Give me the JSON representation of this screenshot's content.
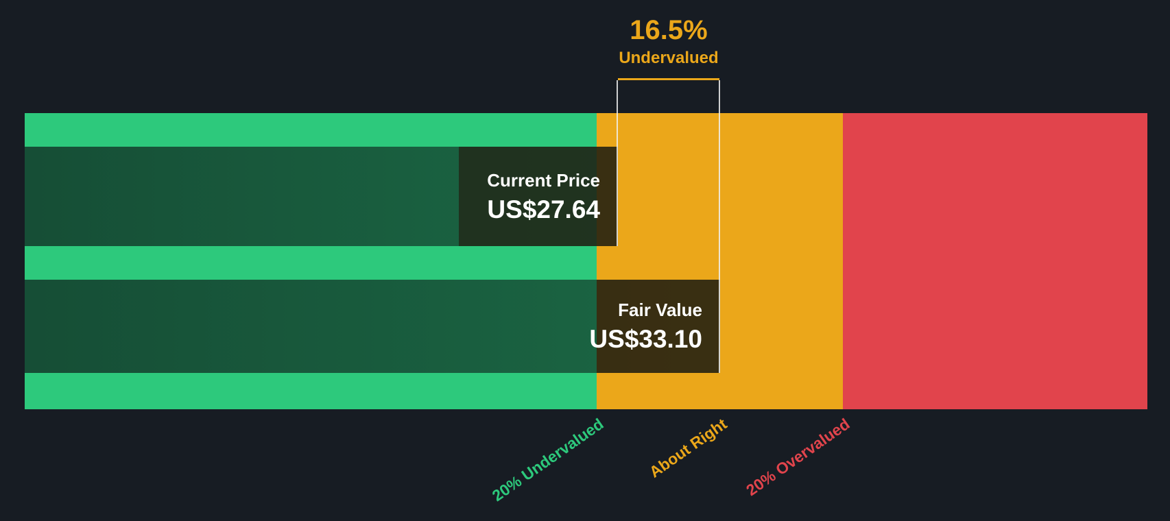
{
  "annotation": {
    "percent": "16.5%",
    "label": "Undervalued"
  },
  "bars": [
    {
      "label": "Current Price",
      "value": "US$27.64"
    },
    {
      "label": "Fair Value",
      "value": "US$33.10"
    }
  ],
  "axis_labels": [
    {
      "text": "20% Undervalued",
      "color": "#2DC97C"
    },
    {
      "text": "About Right",
      "color": "#EBA71A"
    },
    {
      "text": "20% Overvalued",
      "color": "#E1444C"
    }
  ],
  "colors": {
    "background": "#171C23",
    "undervalued_green": "#2DC97C",
    "about_right_amber": "#EBA71A",
    "overvalued_red": "#E1444C",
    "text_white": "#FFFFFF"
  },
  "chart_data": {
    "type": "bar",
    "series": [
      {
        "name": "Current Price",
        "value": 27.64
      },
      {
        "name": "Fair Value",
        "value": 33.1
      }
    ],
    "currency": "US$",
    "undervalued_pct": 16.5,
    "annotation_text": "16.5% Undervalued",
    "zones": [
      {
        "label": "20% Undervalued",
        "color": "#2DC97C",
        "range_pct_of_band": [
          0,
          51
        ]
      },
      {
        "label": "About Right",
        "color": "#EBA71A",
        "range_pct_of_band": [
          51,
          73
        ]
      },
      {
        "label": "20% Overvalued",
        "color": "#E1444C",
        "range_pct_of_band": [
          73,
          100
        ]
      }
    ],
    "legend": "off",
    "grid": "off"
  }
}
